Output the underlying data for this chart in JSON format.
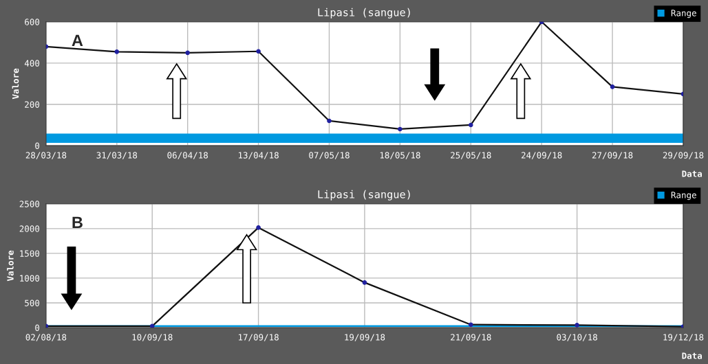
{
  "chart_data": [
    {
      "type": "line",
      "title": "Lipasi (sangue)",
      "xlabel": "Data",
      "ylabel": "Valore",
      "annotations": [
        "A"
      ],
      "categories": [
        "28/03/18",
        "31/03/18",
        "06/04/18",
        "13/04/18",
        "07/05/18",
        "18/05/18",
        "25/05/18",
        "24/09/18",
        "27/09/18",
        "29/09/18"
      ],
      "series": [
        {
          "color": "#111111",
          "values": [
            480,
            455,
            450,
            457,
            120,
            80,
            100,
            600,
            285,
            250
          ]
        }
      ],
      "ylim": [
        0,
        600
      ],
      "yticks": [
        0,
        200,
        400,
        600
      ],
      "grid": true,
      "legend": "top right",
      "marker": "circle",
      "bands": [
        {
          "axis": "y",
          "from": 13,
          "to": 58,
          "label": "Range",
          "color": "#0099e0"
        }
      ]
    },
    {
      "type": "line",
      "title": "Lipasi (sangue)",
      "xlabel": "Data",
      "ylabel": "Valore",
      "annotations": [
        "B"
      ],
      "categories": [
        "02/08/18",
        "10/09/18",
        "17/09/18",
        "19/09/18",
        "21/09/18",
        "03/10/18",
        "19/12/18"
      ],
      "series": [
        {
          "color": "#111111",
          "values": [
            30,
            30,
            2020,
            910,
            60,
            50,
            20
          ]
        }
      ],
      "ylim": [
        0,
        2500
      ],
      "yticks": [
        0,
        500,
        1000,
        1500,
        2000,
        2500
      ],
      "grid": true,
      "legend": "top right",
      "marker": "circle",
      "bands": [
        {
          "axis": "y",
          "from": 13,
          "to": 50,
          "label": "Range",
          "color": "#0099e0"
        }
      ]
    }
  ]
}
